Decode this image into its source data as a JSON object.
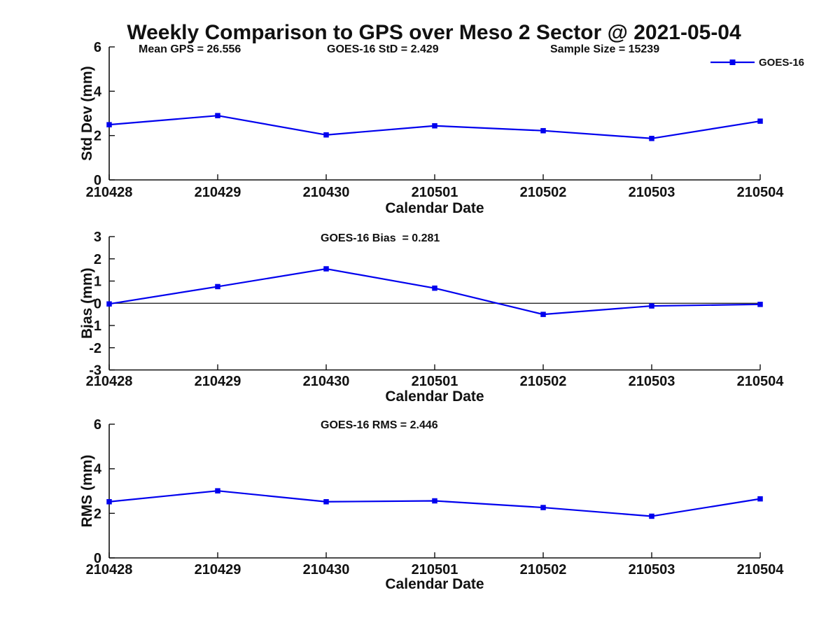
{
  "figure": {
    "title": "Weekly Comparison to GPS over Meso 2 Sector @ 2021-05-04",
    "xlabel": "Calendar Date",
    "x_categories": [
      "210428",
      "210429",
      "210430",
      "210501",
      "210502",
      "210503",
      "210504"
    ],
    "series_color": "#0000EE",
    "axis_color": "#111111",
    "legend_label": "GOES-16"
  },
  "chart_data": [
    {
      "type": "line",
      "name": "std-dev",
      "ylabel": "Std Dev (mm)",
      "xlabel": "Calendar Date",
      "ylim": [
        0,
        6
      ],
      "yticks": [
        0,
        2,
        4,
        6
      ],
      "grid": false,
      "legend_position": "top-right",
      "annotations": [
        "Mean GPS = 26.556",
        "GOES-16 StD = 2.429",
        "Sample Size = 15239"
      ],
      "categories": [
        "210428",
        "210429",
        "210430",
        "210501",
        "210502",
        "210503",
        "210504"
      ],
      "series": [
        {
          "name": "GOES-16",
          "values": [
            2.49,
            2.9,
            2.03,
            2.44,
            2.22,
            1.87,
            2.65
          ]
        }
      ]
    },
    {
      "type": "line",
      "name": "bias",
      "ylabel": "Bias (mm)",
      "xlabel": "Calendar Date",
      "ylim": [
        -3,
        3
      ],
      "yticks": [
        -3,
        -2,
        -1,
        0,
        1,
        2,
        3
      ],
      "grid": false,
      "zero_line": true,
      "annotations": [
        "GOES-16 Bias  = 0.281"
      ],
      "categories": [
        "210428",
        "210429",
        "210430",
        "210501",
        "210502",
        "210503",
        "210504"
      ],
      "series": [
        {
          "name": "GOES-16",
          "values": [
            -0.03,
            0.75,
            1.55,
            0.68,
            -0.5,
            -0.12,
            -0.05
          ]
        }
      ]
    },
    {
      "type": "line",
      "name": "rms",
      "ylabel": "RMS (mm)",
      "xlabel": "Calendar Date",
      "ylim": [
        0,
        6
      ],
      "yticks": [
        0,
        2,
        4,
        6
      ],
      "grid": false,
      "annotations": [
        "GOES-16 RMS = 2.446"
      ],
      "categories": [
        "210428",
        "210429",
        "210430",
        "210501",
        "210502",
        "210503",
        "210504"
      ],
      "series": [
        {
          "name": "GOES-16",
          "values": [
            2.52,
            3.01,
            2.52,
            2.56,
            2.26,
            1.87,
            2.65
          ]
        }
      ]
    }
  ]
}
